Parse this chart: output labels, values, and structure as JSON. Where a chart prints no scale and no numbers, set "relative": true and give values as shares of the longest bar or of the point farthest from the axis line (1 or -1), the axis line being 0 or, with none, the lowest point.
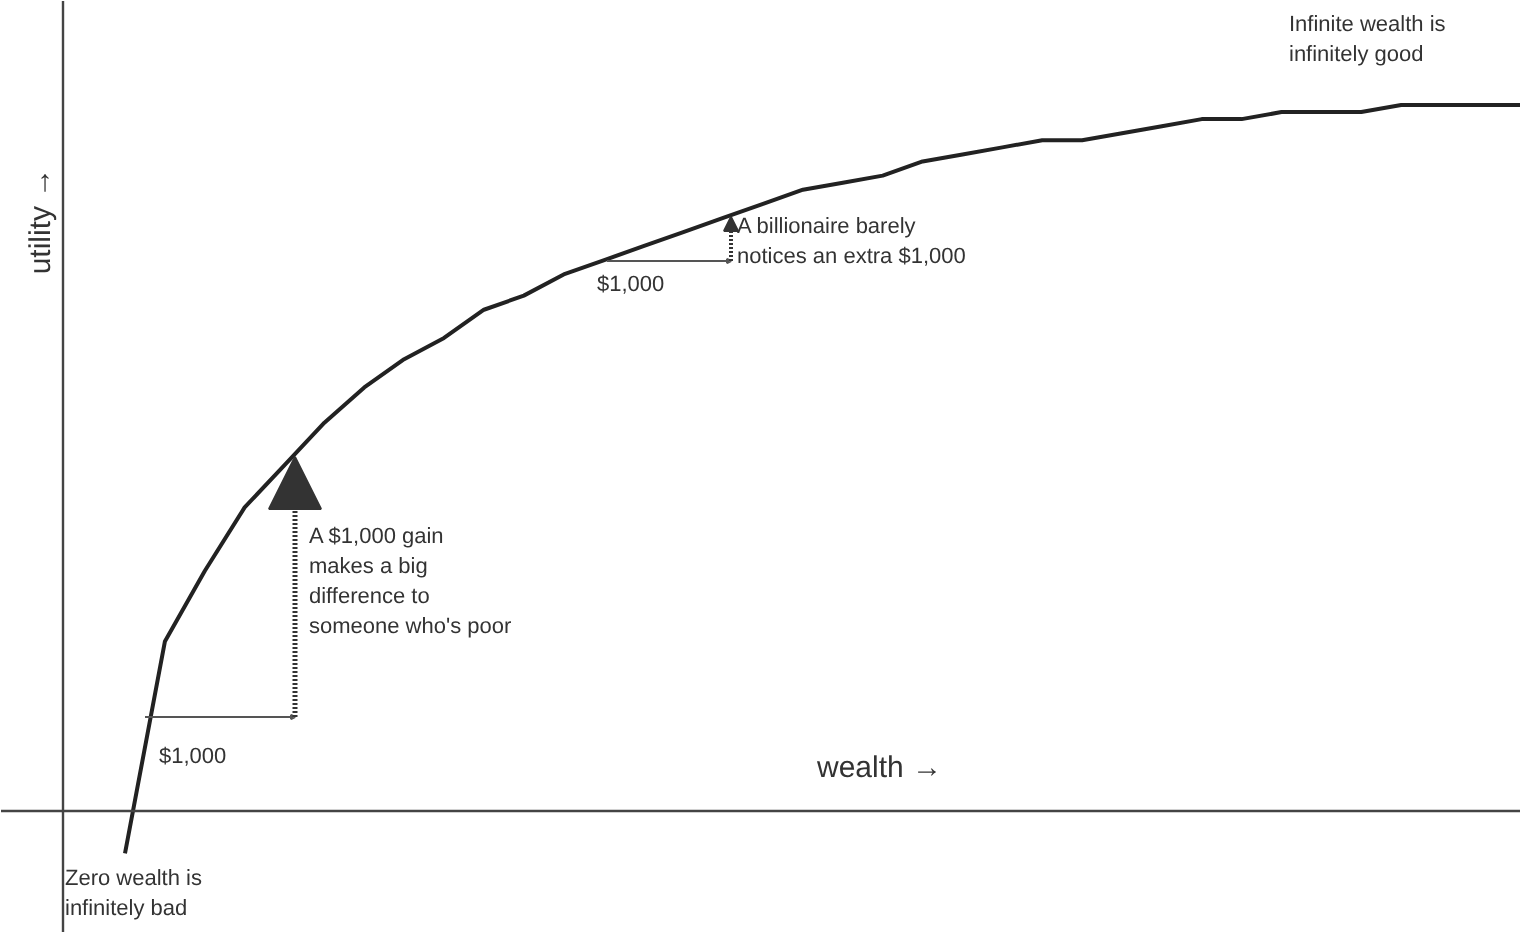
{
  "chart_data": {
    "type": "line",
    "relative": true,
    "xlabel": "wealth →",
    "ylabel": "utility →",
    "categories": [
      null,
      null,
      null,
      null,
      null,
      null,
      null,
      null,
      null,
      null,
      null,
      null,
      null,
      null,
      null,
      null,
      null,
      null,
      null,
      null,
      null,
      null,
      null,
      null,
      null,
      null,
      null,
      null,
      null,
      null,
      null,
      null,
      null,
      null,
      null,
      null
    ],
    "series": [
      {
        "color": "#222222",
        "values": [
          -0.06,
          0.24,
          0.34,
          0.43,
          0.49,
          0.55,
          0.6,
          0.64,
          0.67,
          0.71,
          0.73,
          0.76,
          0.78,
          0.8,
          0.82,
          0.84,
          0.86,
          0.88,
          0.89,
          0.9,
          0.92,
          0.93,
          0.94,
          0.95,
          0.95,
          0.96,
          0.97,
          0.98,
          0.98,
          0.99,
          0.99,
          0.99,
          1.0,
          1.0,
          1.0,
          1.0
        ]
      }
    ],
    "annotations": [
      "A $1,000 gain\nmakes a big\ndifference to\nsomeone who's poor",
      "A billionaire barely\nnotices an extra $1,000",
      "$1,000",
      "$1,000",
      "Infinite wealth is\ninfinitely good",
      "Zero wealth is\ninfinitely bad"
    ]
  }
}
